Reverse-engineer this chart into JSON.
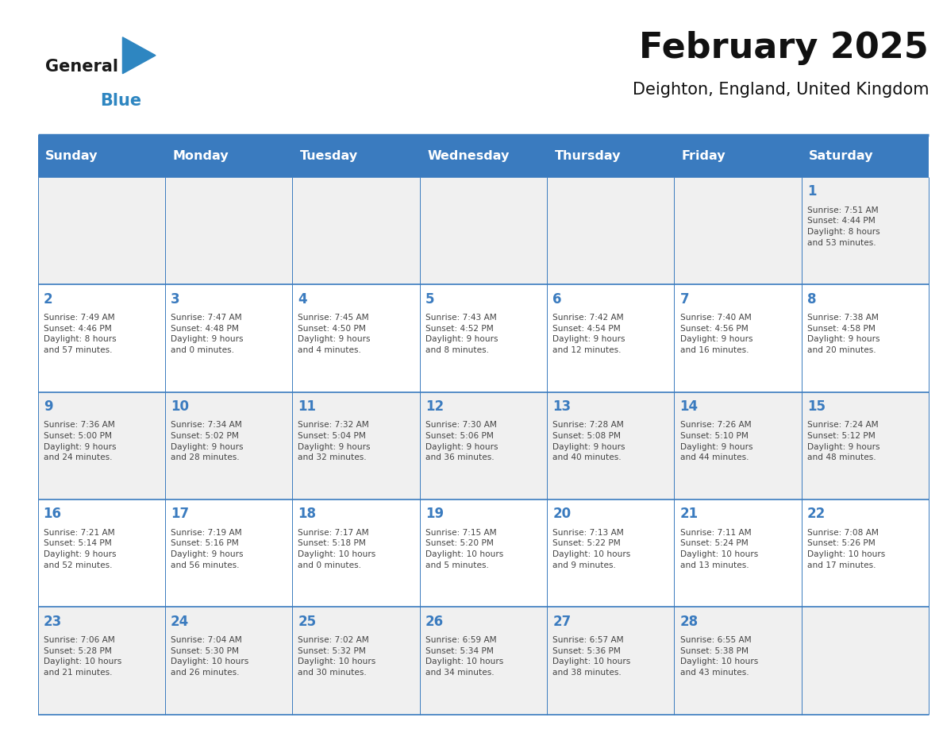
{
  "title": "February 2025",
  "subtitle": "Deighton, England, United Kingdom",
  "days_of_week": [
    "Sunday",
    "Monday",
    "Tuesday",
    "Wednesday",
    "Thursday",
    "Friday",
    "Saturday"
  ],
  "header_bg": "#3a7bbf",
  "header_text_color": "#ffffff",
  "cell_bg_light": "#f0f0f0",
  "cell_bg_white": "#ffffff",
  "border_color": "#3a7bbf",
  "text_color": "#444444",
  "day_number_color": "#3a7bbf",
  "logo_general_color": "#1a1a1a",
  "logo_blue_color": "#2e86c1",
  "calendar_data": [
    [
      {
        "day": null,
        "info": null
      },
      {
        "day": null,
        "info": null
      },
      {
        "day": null,
        "info": null
      },
      {
        "day": null,
        "info": null
      },
      {
        "day": null,
        "info": null
      },
      {
        "day": null,
        "info": null
      },
      {
        "day": 1,
        "info": "Sunrise: 7:51 AM\nSunset: 4:44 PM\nDaylight: 8 hours\nand 53 minutes."
      }
    ],
    [
      {
        "day": 2,
        "info": "Sunrise: 7:49 AM\nSunset: 4:46 PM\nDaylight: 8 hours\nand 57 minutes."
      },
      {
        "day": 3,
        "info": "Sunrise: 7:47 AM\nSunset: 4:48 PM\nDaylight: 9 hours\nand 0 minutes."
      },
      {
        "day": 4,
        "info": "Sunrise: 7:45 AM\nSunset: 4:50 PM\nDaylight: 9 hours\nand 4 minutes."
      },
      {
        "day": 5,
        "info": "Sunrise: 7:43 AM\nSunset: 4:52 PM\nDaylight: 9 hours\nand 8 minutes."
      },
      {
        "day": 6,
        "info": "Sunrise: 7:42 AM\nSunset: 4:54 PM\nDaylight: 9 hours\nand 12 minutes."
      },
      {
        "day": 7,
        "info": "Sunrise: 7:40 AM\nSunset: 4:56 PM\nDaylight: 9 hours\nand 16 minutes."
      },
      {
        "day": 8,
        "info": "Sunrise: 7:38 AM\nSunset: 4:58 PM\nDaylight: 9 hours\nand 20 minutes."
      }
    ],
    [
      {
        "day": 9,
        "info": "Sunrise: 7:36 AM\nSunset: 5:00 PM\nDaylight: 9 hours\nand 24 minutes."
      },
      {
        "day": 10,
        "info": "Sunrise: 7:34 AM\nSunset: 5:02 PM\nDaylight: 9 hours\nand 28 minutes."
      },
      {
        "day": 11,
        "info": "Sunrise: 7:32 AM\nSunset: 5:04 PM\nDaylight: 9 hours\nand 32 minutes."
      },
      {
        "day": 12,
        "info": "Sunrise: 7:30 AM\nSunset: 5:06 PM\nDaylight: 9 hours\nand 36 minutes."
      },
      {
        "day": 13,
        "info": "Sunrise: 7:28 AM\nSunset: 5:08 PM\nDaylight: 9 hours\nand 40 minutes."
      },
      {
        "day": 14,
        "info": "Sunrise: 7:26 AM\nSunset: 5:10 PM\nDaylight: 9 hours\nand 44 minutes."
      },
      {
        "day": 15,
        "info": "Sunrise: 7:24 AM\nSunset: 5:12 PM\nDaylight: 9 hours\nand 48 minutes."
      }
    ],
    [
      {
        "day": 16,
        "info": "Sunrise: 7:21 AM\nSunset: 5:14 PM\nDaylight: 9 hours\nand 52 minutes."
      },
      {
        "day": 17,
        "info": "Sunrise: 7:19 AM\nSunset: 5:16 PM\nDaylight: 9 hours\nand 56 minutes."
      },
      {
        "day": 18,
        "info": "Sunrise: 7:17 AM\nSunset: 5:18 PM\nDaylight: 10 hours\nand 0 minutes."
      },
      {
        "day": 19,
        "info": "Sunrise: 7:15 AM\nSunset: 5:20 PM\nDaylight: 10 hours\nand 5 minutes."
      },
      {
        "day": 20,
        "info": "Sunrise: 7:13 AM\nSunset: 5:22 PM\nDaylight: 10 hours\nand 9 minutes."
      },
      {
        "day": 21,
        "info": "Sunrise: 7:11 AM\nSunset: 5:24 PM\nDaylight: 10 hours\nand 13 minutes."
      },
      {
        "day": 22,
        "info": "Sunrise: 7:08 AM\nSunset: 5:26 PM\nDaylight: 10 hours\nand 17 minutes."
      }
    ],
    [
      {
        "day": 23,
        "info": "Sunrise: 7:06 AM\nSunset: 5:28 PM\nDaylight: 10 hours\nand 21 minutes."
      },
      {
        "day": 24,
        "info": "Sunrise: 7:04 AM\nSunset: 5:30 PM\nDaylight: 10 hours\nand 26 minutes."
      },
      {
        "day": 25,
        "info": "Sunrise: 7:02 AM\nSunset: 5:32 PM\nDaylight: 10 hours\nand 30 minutes."
      },
      {
        "day": 26,
        "info": "Sunrise: 6:59 AM\nSunset: 5:34 PM\nDaylight: 10 hours\nand 34 minutes."
      },
      {
        "day": 27,
        "info": "Sunrise: 6:57 AM\nSunset: 5:36 PM\nDaylight: 10 hours\nand 38 minutes."
      },
      {
        "day": 28,
        "info": "Sunrise: 6:55 AM\nSunset: 5:38 PM\nDaylight: 10 hours\nand 43 minutes."
      },
      {
        "day": null,
        "info": null
      }
    ]
  ]
}
